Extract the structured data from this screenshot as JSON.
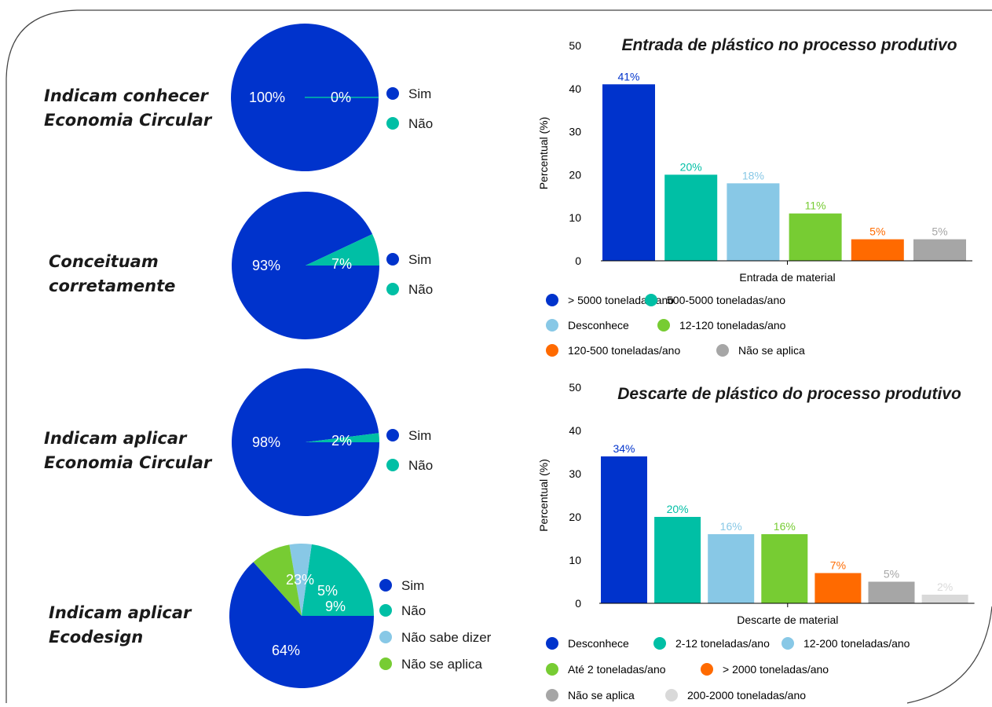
{
  "colors": {
    "dark_blue": "#0033CC",
    "teal": "#00BFA5",
    "light_blue": "#88C8E6",
    "green": "#77CC33",
    "orange": "#FF6A00",
    "gray": "#A6A6A6",
    "light_gray": "#D9D9D9"
  },
  "rows": [
    {
      "line1": "Indicam conhecer",
      "line2": "Economia Circular"
    },
    {
      "line1": "Conceituam",
      "line2": "corretamente"
    },
    {
      "line1": "Indicam aplicar",
      "line2": "Economia Circular"
    },
    {
      "line1": "Indicam aplicar",
      "line2": "Ecodesign"
    }
  ],
  "chart_data": [
    {
      "type": "pie",
      "slices": [
        {
          "label": "Sim",
          "value": 100,
          "text": "100%",
          "color": "#0033CC"
        },
        {
          "label": "Não",
          "value": 0,
          "text": "0%",
          "color": "#00BFA5"
        }
      ],
      "legend": [
        "Sim",
        "Não"
      ]
    },
    {
      "type": "pie",
      "slices": [
        {
          "label": "Sim",
          "value": 93,
          "text": "93%",
          "color": "#0033CC"
        },
        {
          "label": "Não",
          "value": 7,
          "text": "7%",
          "color": "#00BFA5"
        }
      ],
      "legend": [
        "Sim",
        "Não"
      ]
    },
    {
      "type": "pie",
      "slices": [
        {
          "label": "Sim",
          "value": 98,
          "text": "98%",
          "color": "#0033CC"
        },
        {
          "label": "Não",
          "value": 2,
          "text": "2%",
          "color": "#00BFA5"
        }
      ],
      "legend": [
        "Sim",
        "Não"
      ]
    },
    {
      "type": "pie",
      "slices": [
        {
          "label": "Sim",
          "value": 64,
          "text": "64%",
          "color": "#0033CC"
        },
        {
          "label": "Não",
          "value": 23,
          "text": "23%",
          "color": "#00BFA5"
        },
        {
          "label": "Não sabe dizer",
          "value": 5,
          "text": "5%",
          "color": "#88C8E6"
        },
        {
          "label": "Não se aplica",
          "value": 9,
          "text": "9%",
          "color": "#77CC33"
        }
      ],
      "legend": [
        "Sim",
        "Não",
        "Não sabe dizer",
        "Não se aplica"
      ]
    },
    {
      "type": "bar",
      "title": "Entrada de plástico no processo produtivo",
      "xlabel": "Entrada de material",
      "ylabel": "Percentual (%)",
      "ylim": [
        0,
        50
      ],
      "yticks": [
        "0",
        "10",
        "20",
        "30",
        "40",
        "50"
      ],
      "categories": [
        "> 5000 toneladas/ano",
        "500-5000 toneladas/ano",
        "Desconhece",
        "12-120 toneladas/ano",
        "120-500 toneladas/ano",
        "Não se aplica"
      ],
      "values": [
        41,
        20,
        18,
        11,
        5,
        5
      ],
      "value_labels": [
        "41%",
        "20%",
        "18%",
        "11%",
        "5%",
        "5%"
      ],
      "colors": [
        "#0033CC",
        "#00BFA5",
        "#88C8E6",
        "#77CC33",
        "#FF6A00",
        "#A6A6A6"
      ]
    },
    {
      "type": "bar",
      "title": "Descarte de plástico do processo produtivo",
      "xlabel": "Descarte de material",
      "ylabel": "Percentual (%)",
      "ylim": [
        0,
        50
      ],
      "yticks": [
        "0",
        "10",
        "20",
        "30",
        "40",
        "50"
      ],
      "categories": [
        "Desconhece",
        "2-12 toneladas/ano",
        "12-200 toneladas/ano",
        "Até 2 toneladas/ano",
        "> 2000 toneladas/ano",
        "Não se aplica",
        "200-2000 toneladas/ano"
      ],
      "values": [
        34,
        20,
        16,
        16,
        7,
        5,
        2
      ],
      "value_labels": [
        "34%",
        "20%",
        "16%",
        "16%",
        "7%",
        "5%",
        "2%"
      ],
      "colors": [
        "#0033CC",
        "#00BFA5",
        "#88C8E6",
        "#77CC33",
        "#FF6A00",
        "#A6A6A6",
        "#D9D9D9"
      ]
    }
  ]
}
